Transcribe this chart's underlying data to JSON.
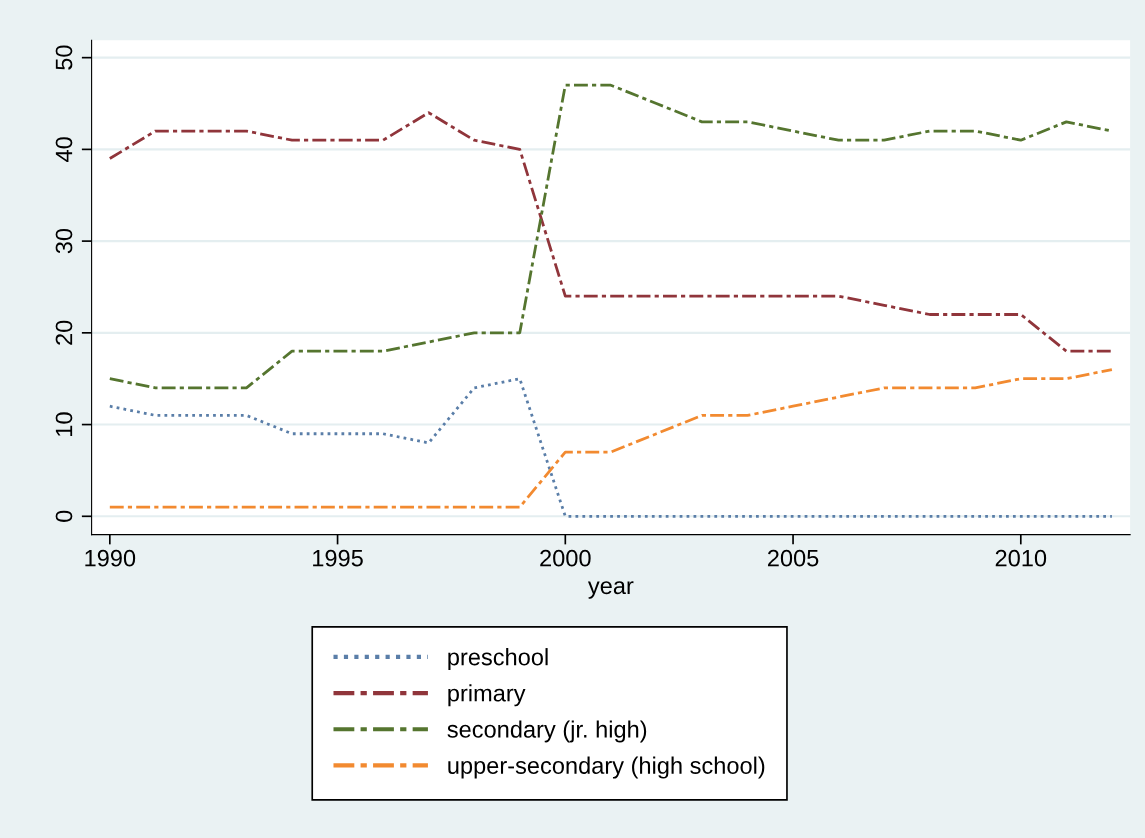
{
  "chart_data": {
    "type": "line",
    "xlabel": "year",
    "x": [
      1990,
      1991,
      1992,
      1993,
      1994,
      1995,
      1996,
      1997,
      1998,
      1999,
      2000,
      2001,
      2002,
      2003,
      2004,
      2005,
      2006,
      2007,
      2008,
      2009,
      2010,
      2011,
      2012
    ],
    "series": [
      {
        "name": "preschool",
        "color": "#5a7ea8",
        "line_style": "dotted",
        "values": [
          12,
          11,
          11,
          11,
          9,
          9,
          9,
          8,
          14,
          15,
          0,
          0,
          0,
          0,
          0,
          0,
          0,
          0,
          0,
          0,
          0,
          0,
          0
        ]
      },
      {
        "name": "primary",
        "color": "#90353b",
        "line_style": "dashed",
        "values": [
          39,
          42,
          42,
          42,
          41,
          41,
          41,
          44,
          41,
          40,
          24,
          24,
          24,
          24,
          24,
          24,
          24,
          23,
          22,
          22,
          22,
          18,
          18
        ]
      },
      {
        "name": "secondary (jr. high)",
        "color": "#55752f",
        "line_style": "dashed",
        "values": [
          15,
          14,
          14,
          14,
          18,
          18,
          18,
          19,
          20,
          20,
          47,
          47,
          45,
          43,
          43,
          42,
          41,
          41,
          42,
          42,
          41,
          43,
          42
        ]
      },
      {
        "name": "upper-secondary (high school)",
        "color": "#f28a30",
        "line_style": "dashed",
        "values": [
          1,
          1,
          1,
          1,
          1,
          1,
          1,
          1,
          1,
          1,
          7,
          7,
          9,
          11,
          11,
          12,
          13,
          14,
          14,
          14,
          15,
          15,
          16
        ]
      }
    ],
    "xlim": [
      1989.6,
      2012.4
    ],
    "ylim": [
      -2,
      51.9
    ],
    "xticks": [
      1990,
      1995,
      2000,
      2005,
      2010
    ],
    "yticks": [
      0,
      10,
      20,
      30,
      40,
      50
    ],
    "grid": "y",
    "legend": "bottom",
    "marker": "none"
  }
}
